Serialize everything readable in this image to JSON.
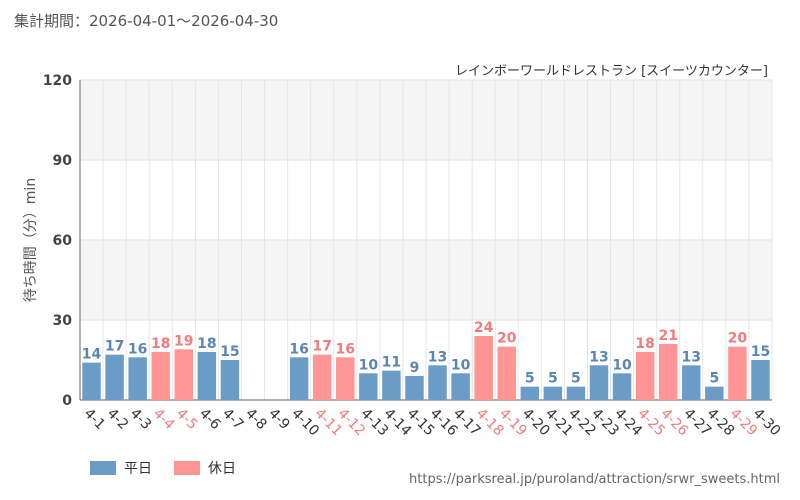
{
  "header": {
    "period_label": "集計期間：2026-04-01～2026-04-30"
  },
  "source": "https://parksreal.jp/puroland/attraction/srwr_sweets.html",
  "colors": {
    "weekday": "#6b9bc7",
    "holiday": "#ff9595",
    "weekday_text": "#5a86b3",
    "holiday_text": "#f07c7c"
  },
  "chart_data": {
    "type": "bar",
    "title": "レインボーワールドレストラン [スイーツカウンター]",
    "xlabel": "",
    "ylabel": "待ち時間（分）min",
    "ylim": [
      0,
      120
    ],
    "yticks": [
      0,
      30,
      60,
      90,
      120
    ],
    "grid": true,
    "legend_position": "bottom-left",
    "categories": [
      "4-1",
      "4-2",
      "4-3",
      "4-4",
      "4-5",
      "4-6",
      "4-7",
      "4-8",
      "4-9",
      "4-10",
      "4-11",
      "4-12",
      "4-13",
      "4-14",
      "4-15",
      "4-16",
      "4-17",
      "4-18",
      "4-19",
      "4-20",
      "4-21",
      "4-22",
      "4-23",
      "4-24",
      "4-25",
      "4-26",
      "4-27",
      "4-28",
      "4-29",
      "4-30"
    ],
    "values": [
      14,
      17,
      16,
      18,
      19,
      18,
      15,
      null,
      null,
      16,
      17,
      16,
      10,
      11,
      9,
      13,
      10,
      24,
      20,
      5,
      5,
      5,
      13,
      10,
      18,
      21,
      13,
      5,
      20,
      15
    ],
    "day_type": [
      "weekday",
      "weekday",
      "weekday",
      "holiday",
      "holiday",
      "weekday",
      "weekday",
      "weekday",
      "weekday",
      "weekday",
      "holiday",
      "holiday",
      "weekday",
      "weekday",
      "weekday",
      "weekday",
      "weekday",
      "holiday",
      "holiday",
      "weekday",
      "weekday",
      "weekday",
      "weekday",
      "weekday",
      "holiday",
      "holiday",
      "weekday",
      "weekday",
      "holiday",
      "weekday"
    ],
    "legend": [
      {
        "key": "weekday",
        "label": "平日"
      },
      {
        "key": "holiday",
        "label": "休日"
      }
    ]
  }
}
